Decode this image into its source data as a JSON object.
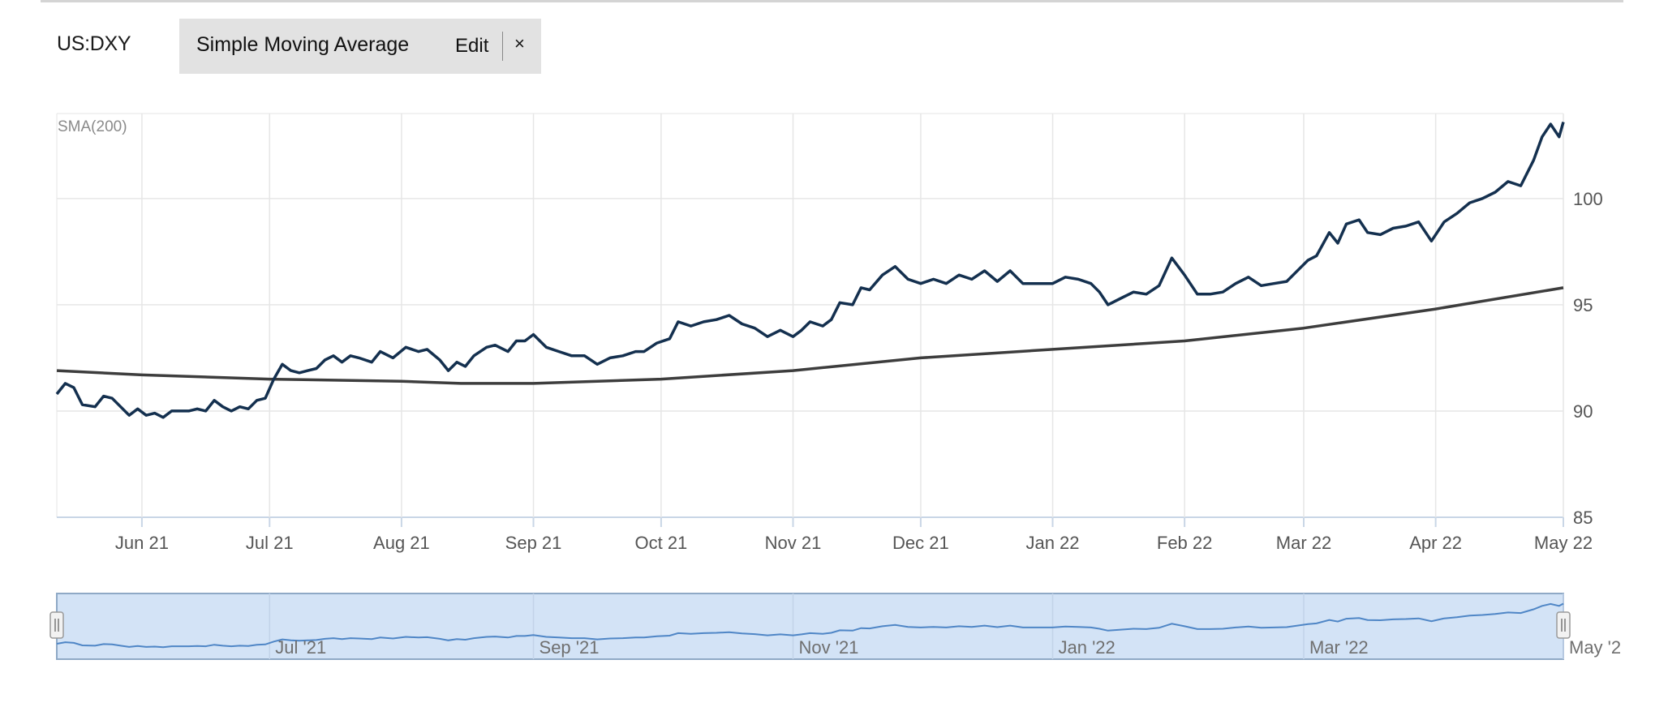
{
  "header": {
    "symbol": "US:DXY",
    "indicator_name": "Simple Moving Average",
    "edit_label": "Edit",
    "close_label": "×"
  },
  "colors": {
    "price_line": "#14304f",
    "sma_line": "#3d3d3d",
    "grid": "#e6e6e6",
    "navigator_fill": "#d3e3f6",
    "navigator_border": "#8fa9c6",
    "navigator_line": "#4f86c6"
  },
  "chart_data": {
    "type": "line",
    "indicator_label": "SMA(200)",
    "x_range": [
      "2021-05-12",
      "2022-05-01"
    ],
    "ylim": [
      85,
      104
    ],
    "yticks": [
      {
        "value": 85,
        "label": "85"
      },
      {
        "value": 90,
        "label": "90"
      },
      {
        "value": 95,
        "label": "95"
      },
      {
        "value": 100,
        "label": "100"
      }
    ],
    "xticks": [
      {
        "date": "2021-06-01",
        "label": "Jun 21"
      },
      {
        "date": "2021-07-01",
        "label": "Jul 21"
      },
      {
        "date": "2021-08-01",
        "label": "Aug 21"
      },
      {
        "date": "2021-09-01",
        "label": "Sep 21"
      },
      {
        "date": "2021-10-01",
        "label": "Oct 21"
      },
      {
        "date": "2021-11-01",
        "label": "Nov 21"
      },
      {
        "date": "2021-12-01",
        "label": "Dec 21"
      },
      {
        "date": "2022-01-01",
        "label": "Jan 22"
      },
      {
        "date": "2022-02-01",
        "label": "Feb 22"
      },
      {
        "date": "2022-03-01",
        "label": "Mar 22"
      },
      {
        "date": "2022-04-01",
        "label": "Apr 22"
      },
      {
        "date": "2022-05-01",
        "label": "May 22"
      }
    ],
    "navigator_labels": [
      {
        "date": "2021-07-01",
        "label": "Jul '21"
      },
      {
        "date": "2021-09-01",
        "label": "Sep '21"
      },
      {
        "date": "2021-11-01",
        "label": "Nov '21"
      },
      {
        "date": "2022-01-01",
        "label": "Jan '22"
      },
      {
        "date": "2022-03-01",
        "label": "Mar '22"
      },
      {
        "date": "2022-05-01",
        "label": "May '2"
      }
    ],
    "grid": true,
    "series": [
      {
        "name": "US:DXY",
        "points": [
          [
            "2021-05-12",
            90.8
          ],
          [
            "2021-05-14",
            91.3
          ],
          [
            "2021-05-16",
            91.1
          ],
          [
            "2021-05-18",
            90.3
          ],
          [
            "2021-05-21",
            90.2
          ],
          [
            "2021-05-23",
            90.7
          ],
          [
            "2021-05-25",
            90.6
          ],
          [
            "2021-05-27",
            90.2
          ],
          [
            "2021-05-29",
            89.8
          ],
          [
            "2021-05-31",
            90.1
          ],
          [
            "2021-06-02",
            89.8
          ],
          [
            "2021-06-04",
            89.9
          ],
          [
            "2021-06-06",
            89.7
          ],
          [
            "2021-06-08",
            90.0
          ],
          [
            "2021-06-10",
            90.0
          ],
          [
            "2021-06-12",
            90.0
          ],
          [
            "2021-06-14",
            90.1
          ],
          [
            "2021-06-16",
            90.0
          ],
          [
            "2021-06-18",
            90.5
          ],
          [
            "2021-06-20",
            90.2
          ],
          [
            "2021-06-22",
            90.0
          ],
          [
            "2021-06-24",
            90.2
          ],
          [
            "2021-06-26",
            90.1
          ],
          [
            "2021-06-28",
            90.5
          ],
          [
            "2021-06-30",
            90.6
          ],
          [
            "2021-07-02",
            91.5
          ],
          [
            "2021-07-04",
            92.2
          ],
          [
            "2021-07-06",
            91.9
          ],
          [
            "2021-07-08",
            91.8
          ],
          [
            "2021-07-10",
            91.9
          ],
          [
            "2021-07-12",
            92.0
          ],
          [
            "2021-07-14",
            92.4
          ],
          [
            "2021-07-16",
            92.6
          ],
          [
            "2021-07-18",
            92.3
          ],
          [
            "2021-07-20",
            92.6
          ],
          [
            "2021-07-22",
            92.5
          ],
          [
            "2021-07-25",
            92.3
          ],
          [
            "2021-07-27",
            92.8
          ],
          [
            "2021-07-30",
            92.5
          ],
          [
            "2021-08-02",
            93.0
          ],
          [
            "2021-08-05",
            92.8
          ],
          [
            "2021-08-07",
            92.9
          ],
          [
            "2021-08-10",
            92.4
          ],
          [
            "2021-08-12",
            91.9
          ],
          [
            "2021-08-14",
            92.3
          ],
          [
            "2021-08-16",
            92.1
          ],
          [
            "2021-08-18",
            92.6
          ],
          [
            "2021-08-21",
            93.0
          ],
          [
            "2021-08-23",
            93.1
          ],
          [
            "2021-08-26",
            92.8
          ],
          [
            "2021-08-28",
            93.3
          ],
          [
            "2021-08-30",
            93.3
          ],
          [
            "2021-09-01",
            93.6
          ],
          [
            "2021-09-04",
            93.0
          ],
          [
            "2021-09-07",
            92.8
          ],
          [
            "2021-09-10",
            92.6
          ],
          [
            "2021-09-13",
            92.6
          ],
          [
            "2021-09-16",
            92.2
          ],
          [
            "2021-09-19",
            92.5
          ],
          [
            "2021-09-22",
            92.6
          ],
          [
            "2021-09-25",
            92.8
          ],
          [
            "2021-09-27",
            92.8
          ],
          [
            "2021-09-30",
            93.2
          ],
          [
            "2021-10-03",
            93.4
          ],
          [
            "2021-10-05",
            94.2
          ],
          [
            "2021-10-08",
            94.0
          ],
          [
            "2021-10-11",
            94.2
          ],
          [
            "2021-10-14",
            94.3
          ],
          [
            "2021-10-17",
            94.5
          ],
          [
            "2021-10-20",
            94.1
          ],
          [
            "2021-10-23",
            93.9
          ],
          [
            "2021-10-26",
            93.5
          ],
          [
            "2021-10-29",
            93.8
          ],
          [
            "2021-11-01",
            93.5
          ],
          [
            "2021-11-03",
            93.8
          ],
          [
            "2021-11-05",
            94.2
          ],
          [
            "2021-11-08",
            94.0
          ],
          [
            "2021-11-10",
            94.3
          ],
          [
            "2021-11-12",
            95.1
          ],
          [
            "2021-11-15",
            95.0
          ],
          [
            "2021-11-17",
            95.8
          ],
          [
            "2021-11-19",
            95.7
          ],
          [
            "2021-11-22",
            96.4
          ],
          [
            "2021-11-25",
            96.8
          ],
          [
            "2021-11-28",
            96.2
          ],
          [
            "2021-12-01",
            96.0
          ],
          [
            "2021-12-04",
            96.2
          ],
          [
            "2021-12-07",
            96.0
          ],
          [
            "2021-12-10",
            96.4
          ],
          [
            "2021-12-13",
            96.2
          ],
          [
            "2021-12-16",
            96.6
          ],
          [
            "2021-12-19",
            96.1
          ],
          [
            "2021-12-22",
            96.6
          ],
          [
            "2021-12-25",
            96.0
          ],
          [
            "2021-12-28",
            96.0
          ],
          [
            "2022-01-01",
            96.0
          ],
          [
            "2022-01-04",
            96.3
          ],
          [
            "2022-01-07",
            96.2
          ],
          [
            "2022-01-10",
            96.0
          ],
          [
            "2022-01-12",
            95.6
          ],
          [
            "2022-01-14",
            95.0
          ],
          [
            "2022-01-17",
            95.3
          ],
          [
            "2022-01-20",
            95.6
          ],
          [
            "2022-01-23",
            95.5
          ],
          [
            "2022-01-26",
            95.9
          ],
          [
            "2022-01-29",
            97.2
          ],
          [
            "2022-02-01",
            96.4
          ],
          [
            "2022-02-04",
            95.5
          ],
          [
            "2022-02-07",
            95.5
          ],
          [
            "2022-02-10",
            95.6
          ],
          [
            "2022-02-13",
            96.0
          ],
          [
            "2022-02-16",
            96.3
          ],
          [
            "2022-02-19",
            95.9
          ],
          [
            "2022-02-22",
            96.0
          ],
          [
            "2022-02-25",
            96.1
          ],
          [
            "2022-02-28",
            96.7
          ],
          [
            "2022-03-02",
            97.1
          ],
          [
            "2022-03-04",
            97.3
          ],
          [
            "2022-03-07",
            98.4
          ],
          [
            "2022-03-09",
            97.9
          ],
          [
            "2022-03-11",
            98.8
          ],
          [
            "2022-03-14",
            99.0
          ],
          [
            "2022-03-16",
            98.4
          ],
          [
            "2022-03-19",
            98.3
          ],
          [
            "2022-03-22",
            98.6
          ],
          [
            "2022-03-25",
            98.7
          ],
          [
            "2022-03-28",
            98.9
          ],
          [
            "2022-03-31",
            98.0
          ],
          [
            "2022-04-03",
            98.9
          ],
          [
            "2022-04-06",
            99.3
          ],
          [
            "2022-04-09",
            99.8
          ],
          [
            "2022-04-12",
            100.0
          ],
          [
            "2022-04-15",
            100.3
          ],
          [
            "2022-04-18",
            100.8
          ],
          [
            "2022-04-21",
            100.6
          ],
          [
            "2022-04-24",
            101.8
          ],
          [
            "2022-04-26",
            102.9
          ],
          [
            "2022-04-28",
            103.5
          ],
          [
            "2022-04-30",
            102.9
          ],
          [
            "2022-05-01",
            103.6
          ]
        ]
      },
      {
        "name": "SMA(200)",
        "points": [
          [
            "2021-05-12",
            91.9
          ],
          [
            "2021-06-01",
            91.7
          ],
          [
            "2021-07-01",
            91.5
          ],
          [
            "2021-08-01",
            91.4
          ],
          [
            "2021-08-15",
            91.3
          ],
          [
            "2021-09-01",
            91.3
          ],
          [
            "2021-10-01",
            91.5
          ],
          [
            "2021-11-01",
            91.9
          ],
          [
            "2021-12-01",
            92.5
          ],
          [
            "2022-01-01",
            92.9
          ],
          [
            "2022-02-01",
            93.3
          ],
          [
            "2022-03-01",
            93.9
          ],
          [
            "2022-04-01",
            94.8
          ],
          [
            "2022-05-01",
            95.8
          ]
        ]
      }
    ]
  }
}
